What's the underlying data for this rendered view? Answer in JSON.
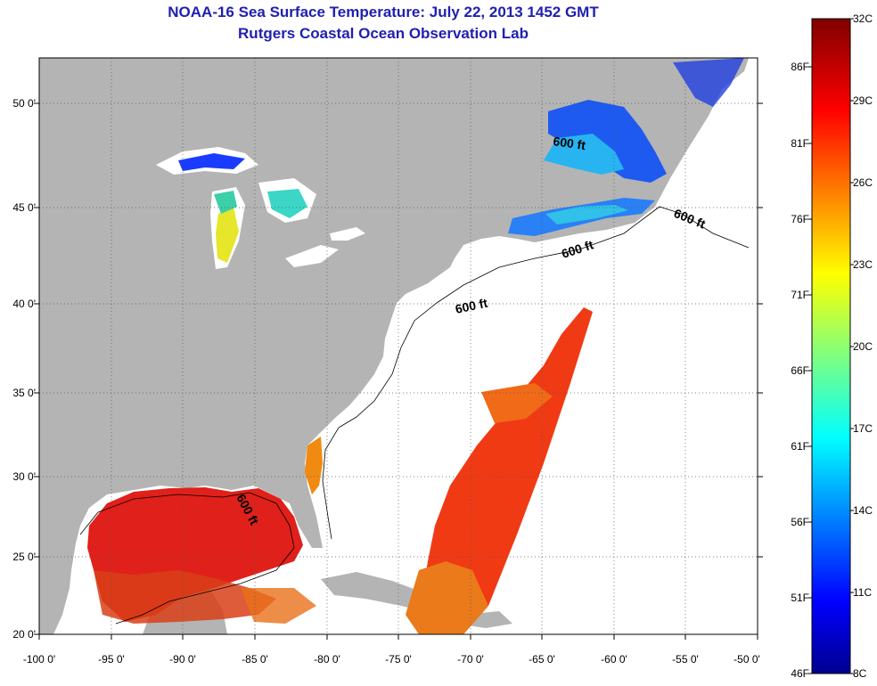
{
  "title": "NOAA-16 Sea Surface Temperature:  July 22, 2013 1452 GMT",
  "subtitle": "Rutgers Coastal Ocean Observation Lab",
  "map": {
    "lon_ticks": [
      "-100 0'",
      "-95 0'",
      "-90 0'",
      "-85 0'",
      "-80 0'",
      "-75 0'",
      "-70 0'",
      "-65 0'",
      "-60 0'",
      "-55 0'",
      "-50 0'"
    ],
    "lat_ticks": [
      "20 0'",
      "25 0'",
      "30 0'",
      "35 0'",
      "40 0'",
      "45 0'",
      "50 0'"
    ],
    "lon_range": [
      -100,
      -50
    ],
    "lat_range": [
      20,
      52.5
    ],
    "grid": "dotted",
    "land_color": "#b4b4b4",
    "no_data_color": "#ffffff",
    "contour_labels": [
      "600 ft",
      "600 ft",
      "600 ft",
      "600 ft",
      "600 ft"
    ]
  },
  "colorbar": {
    "celsius_labels": [
      "32C",
      "29C",
      "26C",
      "23C",
      "20C",
      "17C",
      "14C",
      "11C",
      "8C"
    ],
    "fahrenheit_labels": [
      "86F",
      "81F",
      "76F",
      "71F",
      "66F",
      "61F",
      "56F",
      "51F",
      "46F"
    ],
    "range_c": [
      8,
      32
    ],
    "colormap": "jet"
  }
}
